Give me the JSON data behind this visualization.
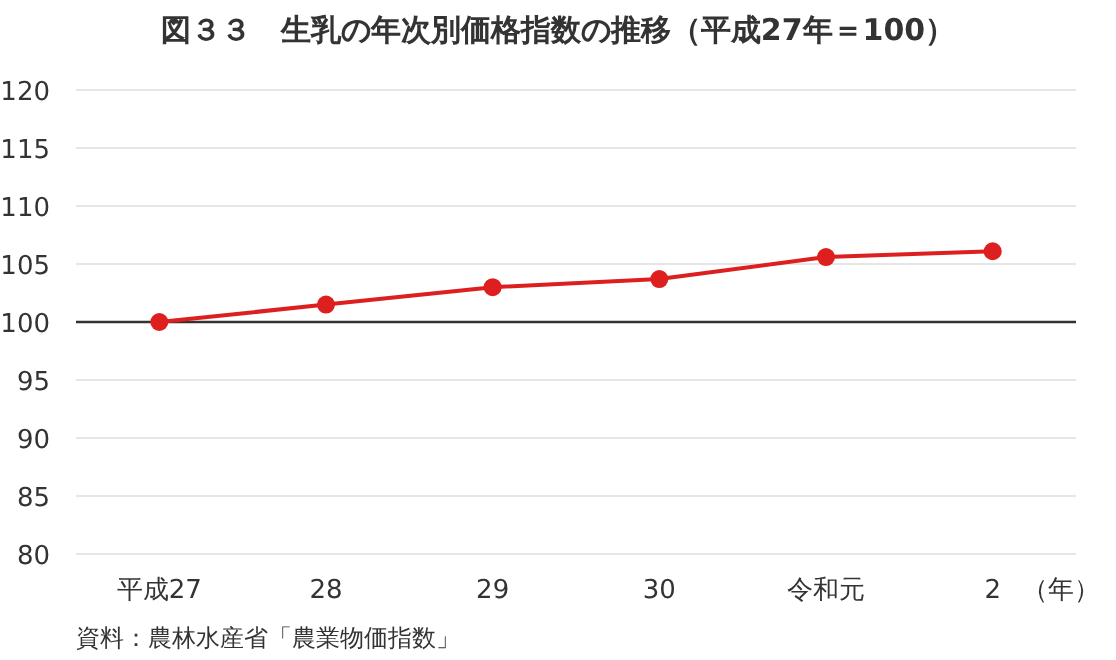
{
  "chart_data": {
    "type": "line",
    "title": "図３３　生乳の年次別価格指数の推移（平成27年＝100）",
    "xlabel": "（年）",
    "categories": [
      "平成27",
      "28",
      "29",
      "30",
      "令和元",
      "2"
    ],
    "series": [
      {
        "color": "#dd1f1f",
        "values": [
          100,
          101.5,
          103.0,
          103.7,
          105.6,
          106.1
        ]
      }
    ],
    "ylim": [
      80,
      120
    ],
    "yticks": [
      80,
      85,
      90,
      95,
      100,
      105,
      110,
      115,
      120
    ],
    "grid": "y",
    "marker": "circle",
    "line_style": "solid",
    "ref_lines": [
      {
        "axis": "y",
        "value": 100,
        "color": "#333333"
      }
    ],
    "annotations": [
      "資料：農林水産省「農業物価指数」"
    ]
  }
}
